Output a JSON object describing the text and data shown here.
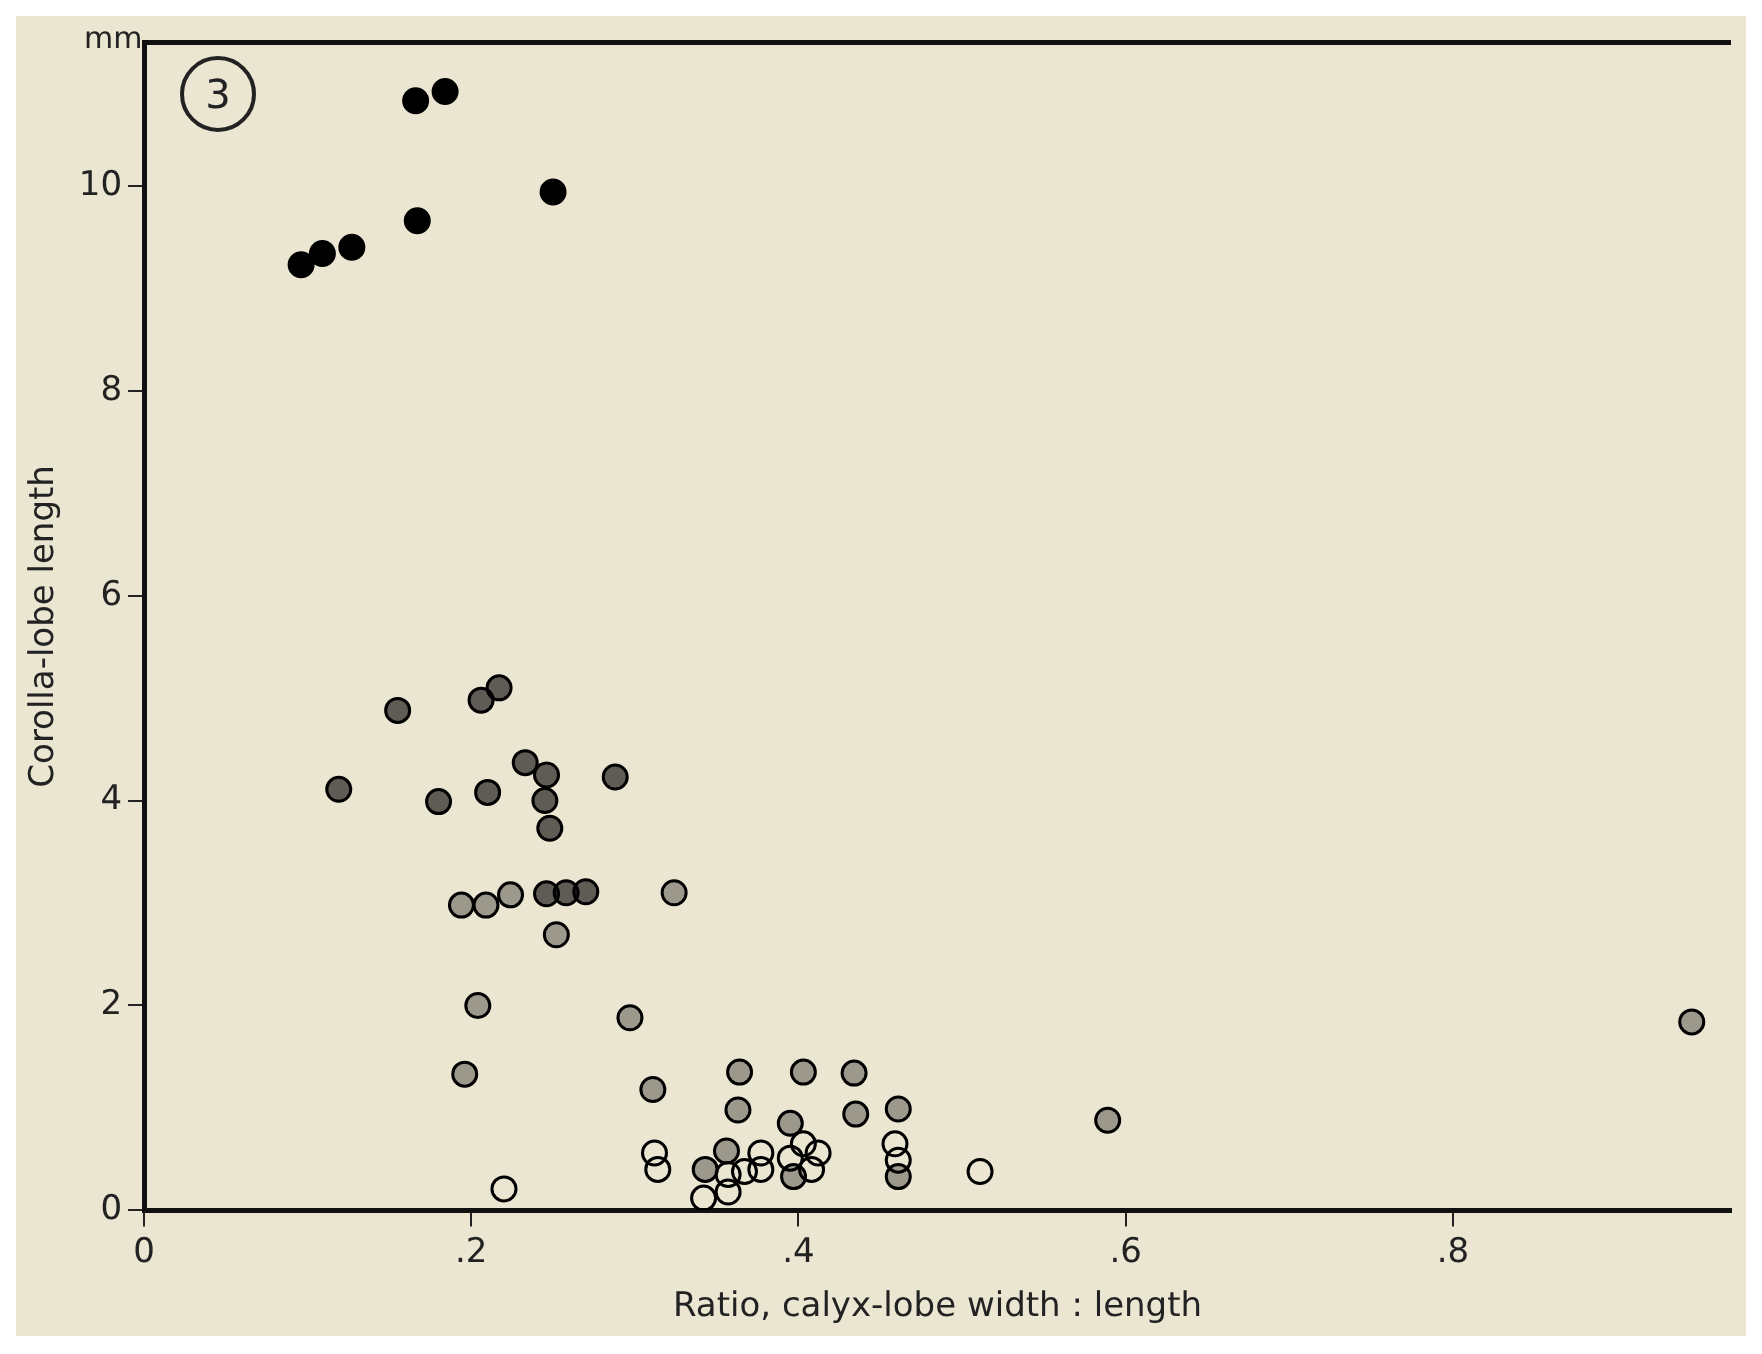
{
  "chart_data": {
    "type": "scatter",
    "xlabel": "Ratio, calyx-lobe width : length",
    "ylabel": "Corolla-lobe length",
    "annotations": [
      "mm",
      "3"
    ],
    "xlim": [
      0,
      0.97
    ],
    "ylim": [
      0,
      11.4
    ],
    "xticks": [
      0,
      {
        "value": 0.2,
        "label": ".2"
      },
      {
        "value": 0.4,
        "label": ".4"
      },
      {
        "value": 0.6,
        "label": ".6"
      },
      {
        "value": 0.8,
        "label": ".8"
      }
    ],
    "yticks": [
      0,
      2,
      4,
      6,
      8,
      10
    ],
    "grid": false,
    "legend": false,
    "marker": "circle",
    "series": [
      {
        "color": "#000000",
        "x": [
          0.166,
          0.184,
          0.25,
          0.167,
          0.096,
          0.109,
          0.127
        ],
        "values": [
          10.83,
          10.92,
          9.94,
          9.66,
          9.23,
          9.34,
          9.4
        ]
      },
      {
        "color": "#000000",
        "x": [
          0.155,
          0.206,
          0.217,
          0.119,
          0.18,
          0.21,
          0.233,
          0.246,
          0.245,
          0.248,
          0.288,
          0.246,
          0.258,
          0.27
        ],
        "values": [
          4.88,
          4.98,
          5.1,
          4.11,
          3.99,
          4.08,
          4.37,
          4.25,
          4.0,
          3.73,
          4.23,
          3.09,
          3.1,
          3.11
        ]
      },
      {
        "color": "#000000",
        "x": [
          0.194,
          0.209,
          0.224,
          0.324,
          0.252,
          0.204,
          0.297,
          0.196,
          0.311,
          0.364,
          0.403,
          0.434,
          0.363,
          0.435,
          0.461,
          0.395,
          0.589,
          0.356,
          0.343,
          0.397,
          0.461,
          0.946
        ],
        "values": [
          2.98,
          2.98,
          3.08,
          3.1,
          2.69,
          2.0,
          1.88,
          1.33,
          1.18,
          1.35,
          1.35,
          1.34,
          0.98,
          0.94,
          0.99,
          0.85,
          0.88,
          0.58,
          0.4,
          0.33,
          0.33,
          1.84
        ]
      },
      {
        "color": "#000000",
        "x": [
          0.312,
          0.314,
          0.342,
          0.357,
          0.357,
          0.367,
          0.377,
          0.377,
          0.395,
          0.403,
          0.412,
          0.408,
          0.459,
          0.461,
          0.511,
          0.22
        ],
        "values": [
          0.56,
          0.4,
          0.12,
          0.35,
          0.18,
          0.38,
          0.56,
          0.4,
          0.51,
          0.65,
          0.56,
          0.4,
          0.65,
          0.49,
          0.38,
          0.21
        ]
      }
    ]
  }
}
